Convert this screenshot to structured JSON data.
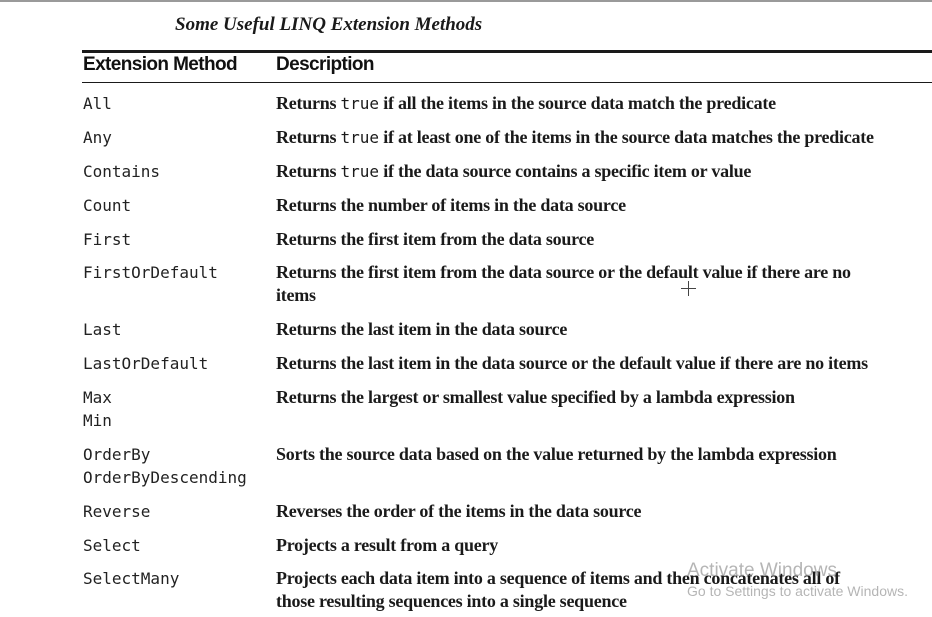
{
  "caption": "Some Useful LINQ Extension Methods",
  "headers": {
    "method": "Extension Method",
    "description": "Description"
  },
  "rows": [
    {
      "method1": "All",
      "d1a": "Returns ",
      "d1code": "true",
      "d1b": " if all the items in the source data match the predicate"
    },
    {
      "method1": "Any",
      "d1a": "Returns ",
      "d1code": "true",
      "d1b": " if at least one of the items in the source data matches the predicate"
    },
    {
      "method1": "Contains",
      "d1a": "Returns ",
      "d1code": "true",
      "d1b": " if the data source contains a specific item or value"
    },
    {
      "method1": "Count",
      "d1": "Returns the number of items in the data source"
    },
    {
      "method1": "First",
      "d1": "Returns the first item from the data source"
    },
    {
      "method1": "FirstOrDefault",
      "d1": "Returns the first item from the data source or the default value if there are no",
      "d2": "items"
    },
    {
      "method1": "Last",
      "d1": "Returns the last item in the data source"
    },
    {
      "method1": "LastOrDefault",
      "d1": "Returns the last item in the data source or the default value if there are no items"
    },
    {
      "method1": "Max",
      "method2": "Min",
      "d1": "Returns the largest or smallest value specified by a lambda expression"
    },
    {
      "method1": "OrderBy",
      "method2": "OrderByDescending",
      "d1": "Sorts the source data based on the value returned by the lambda expression"
    },
    {
      "method1": "Reverse",
      "d1": "Reverses the order of the items in the data source"
    },
    {
      "method1": "Select",
      "d1": "Projects a result from a query"
    },
    {
      "method1": "SelectMany",
      "d1": "Projects each data item into a sequence of items and then concatenates all of",
      "d2": "those resulting sequences into a single sequence"
    }
  ],
  "watermark": {
    "title": "Activate Windows",
    "subtitle": "Go to Settings to activate Windows."
  }
}
